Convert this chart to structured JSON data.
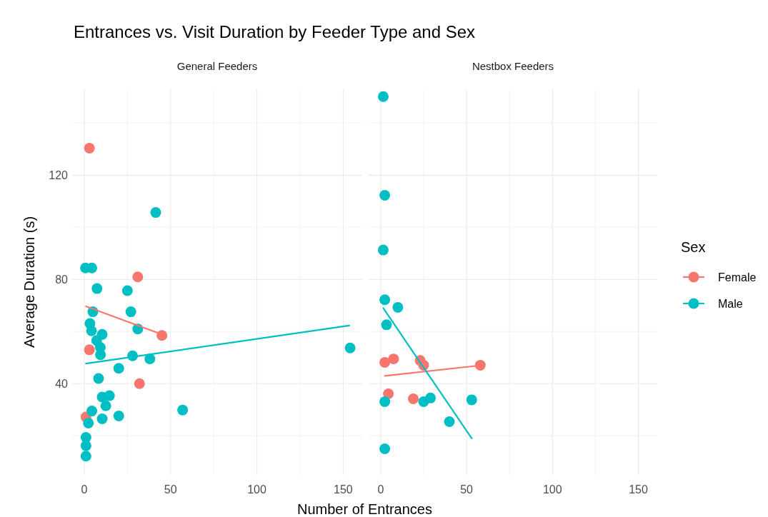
{
  "chart_data": [
    {
      "type": "scatter",
      "title": "Entrances vs. Visit Duration by Feeder Type and Sex",
      "subtitle": "General Feeders",
      "xlabel": "Number of Entrances",
      "ylabel": "Average Duration (s)",
      "xlim": [
        -7,
        161
      ],
      "ylim": [
        5,
        153
      ],
      "xticks": [
        0,
        {
          "value": 25,
          "label": null
        },
        50,
        {
          "value": 75,
          "label": null
        },
        100,
        {
          "value": 125,
          "label": null
        },
        150
      ],
      "yticks": [
        {
          "value": 20,
          "label": null
        },
        40,
        {
          "value": 60,
          "label": null
        },
        80,
        {
          "value": 100,
          "label": null
        },
        120,
        {
          "value": 140,
          "label": null
        }
      ],
      "grid": true,
      "marker": "circle",
      "legend": false,
      "series": [
        {
          "color": "#f8766d",
          "x": [
            3,
            31,
            45,
            3,
            32,
            1
          ],
          "values": [
            130.4,
            81,
            58.5,
            53,
            40,
            27.2
          ]
        },
        {
          "color": "#00bfc4",
          "x": [
            41.4,
            0.7,
            4.4,
            7.4,
            25,
            27,
            5,
            3.3,
            4.2,
            31,
            10.4,
            7.2,
            9.3,
            9.4,
            28,
            38,
            20,
            8.3,
            14.6,
            10.4,
            12.5,
            4.4,
            20,
            10.4,
            2.4,
            1,
            1,
            1,
            57,
            154
          ],
          "values": [
            105.7,
            84.4,
            84.4,
            76.5,
            75.7,
            67.6,
            67.6,
            63.1,
            60.3,
            61,
            58.9,
            56.6,
            53.9,
            51.1,
            50.7,
            49.5,
            45.9,
            42,
            35.4,
            34.9,
            31.5,
            29.5,
            27.6,
            26.5,
            24.9,
            19.4,
            16.2,
            12.2,
            29.9,
            53.7
          ]
        },
        {
          "type": "line",
          "marker": "none",
          "color": "#f8766d",
          "x": [
            1,
            45
          ],
          "values": [
            69.7,
            58.9
          ]
        },
        {
          "type": "line",
          "marker": "none",
          "color": "#00bfc4",
          "x": [
            1,
            153.5
          ],
          "values": [
            47.7,
            62.3
          ]
        }
      ]
    },
    {
      "type": "scatter",
      "subtitle": "Nestbox Feeders",
      "legend_title": "Sex",
      "xlim": [
        -7,
        161
      ],
      "ylim": [
        5,
        153
      ],
      "xticks": [
        0,
        {
          "value": 25,
          "label": null
        },
        50,
        {
          "value": 75,
          "label": null
        },
        100,
        {
          "value": 125,
          "label": null
        },
        150
      ],
      "yticks": [
        {
          "value": 20,
          "label": null
        },
        40,
        {
          "value": 60,
          "label": null
        },
        80,
        {
          "value": 100,
          "label": null
        },
        120,
        {
          "value": 140,
          "label": null
        }
      ],
      "tick_labels": "x",
      "grid": true,
      "marker": "circle",
      "legend": "right",
      "series": [
        {
          "name": "Female",
          "color": "#f8766d",
          "x": [
            2.4,
            7.5,
            23,
            25,
            58,
            4.5,
            19
          ],
          "values": [
            48.2,
            49.5,
            48.9,
            47.1,
            47.1,
            36.1,
            34.2
          ]
        },
        {
          "name": "Male",
          "color": "#00bfc4",
          "x": [
            1.5,
            2.4,
            1.5,
            2.4,
            10,
            3.4,
            2.4,
            25,
            29,
            53,
            40,
            2.4
          ],
          "values": [
            150.2,
            112.3,
            91.3,
            72.2,
            69.3,
            62.6,
            33.1,
            33.1,
            34.5,
            33.8,
            25.4,
            15
          ]
        },
        {
          "type": "line",
          "marker": "none",
          "color": "#f8766d",
          "x": [
            2.4,
            58
          ],
          "values": [
            43,
            47
          ]
        },
        {
          "type": "line",
          "marker": "none",
          "color": "#00bfc4",
          "x": [
            1.5,
            53
          ],
          "values": [
            69,
            19
          ]
        }
      ]
    }
  ]
}
